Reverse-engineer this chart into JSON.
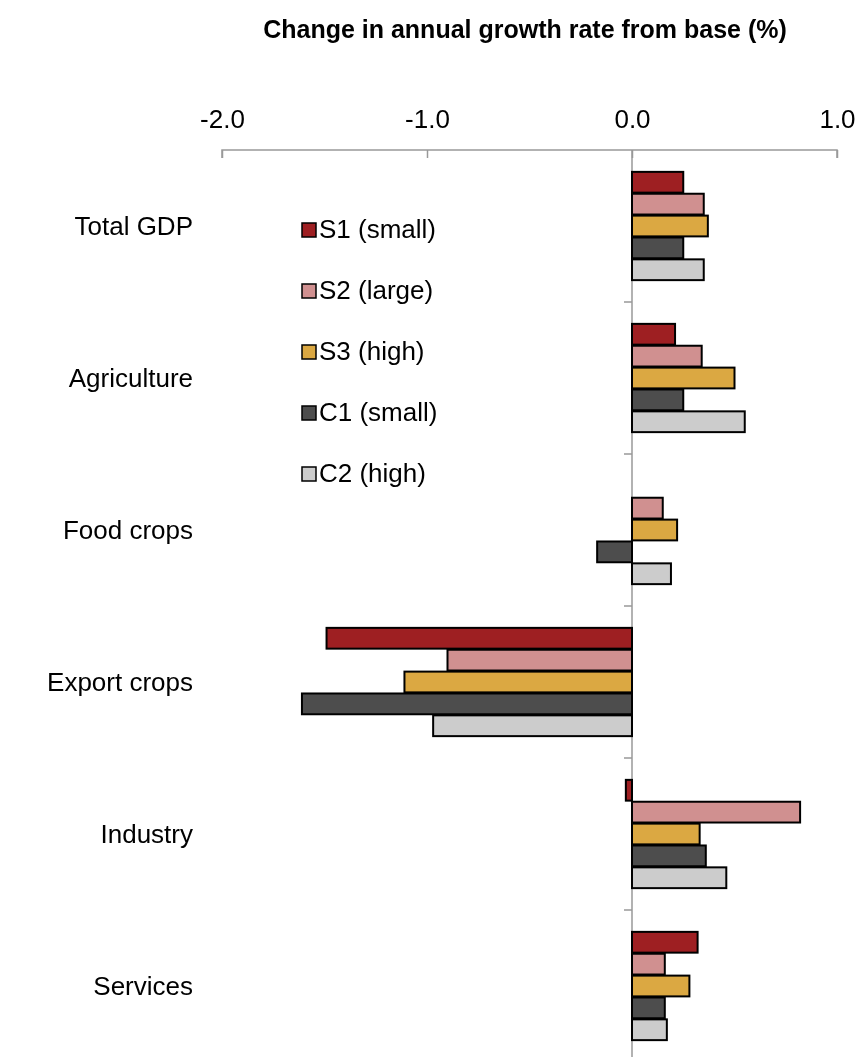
{
  "chart_data": {
    "type": "bar",
    "orientation": "horizontal",
    "title": "Change in annual growth rate from base (%)",
    "categories": [
      "Total GDP",
      "Agriculture",
      "Food crops",
      "Export crops",
      "Industry",
      "Services"
    ],
    "series": [
      {
        "name": "S1 (small)",
        "color": "#9e1f22",
        "values": [
          0.25,
          0.21,
          0,
          -1.49,
          -0.03,
          0.32
        ]
      },
      {
        "name": "S2 (large)",
        "color": "#d09090",
        "values": [
          0.35,
          0.34,
          0.15,
          -0.9,
          0.82,
          0.16
        ]
      },
      {
        "name": "S3 (high)",
        "color": "#dba842",
        "values": [
          0.37,
          0.5,
          0.22,
          -1.11,
          0.33,
          0.28
        ]
      },
      {
        "name": "C1 (small)",
        "color": "#4d4d4d",
        "values": [
          0.25,
          0.25,
          -0.17,
          -1.61,
          0.36,
          0.16
        ]
      },
      {
        "name": "C2 (high)",
        "color": "#cccccc",
        "values": [
          0.35,
          0.55,
          0.19,
          -0.97,
          0.46,
          0.17
        ]
      }
    ],
    "xlim": [
      -2,
      1
    ],
    "xticks": [
      {
        "value": -2,
        "label": "-2.0"
      },
      {
        "value": -1,
        "label": "-1.0"
      },
      {
        "value": 0,
        "label": "0.0"
      },
      {
        "value": 1,
        "label": "1.0"
      }
    ],
    "legend": "top left"
  }
}
